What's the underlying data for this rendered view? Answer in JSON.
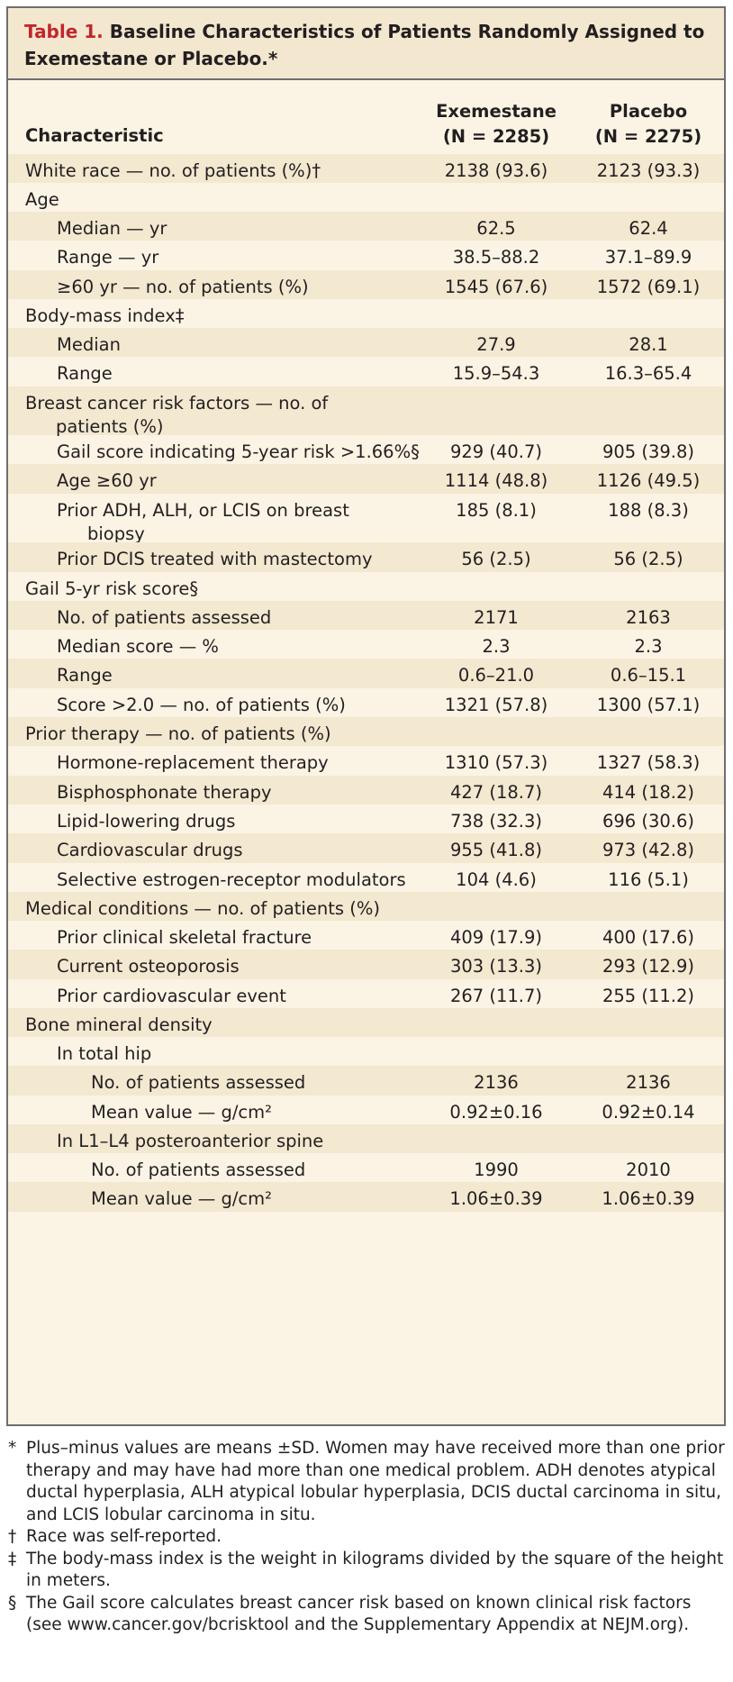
{
  "table": {
    "label": "Table 1.",
    "title": "Baseline Characteristics of Patients Randomly Assigned to Exemestane or Placebo.*",
    "columns": {
      "characteristic": "Characteristic",
      "exemestane": {
        "name": "Exemestane",
        "n": "(N = 2285)"
      },
      "placebo": {
        "name": "Placebo",
        "n": "(N = 2275)"
      }
    },
    "rows": [
      {
        "label": "White race — no. of patients (%)†",
        "exemestane": "2138 (93.6)",
        "placebo": "2123 (93.3)"
      },
      {
        "label": "Age",
        "exemestane": "",
        "placebo": ""
      },
      {
        "label": "Median — yr",
        "exemestane": "62.5",
        "placebo": "62.4"
      },
      {
        "label": "Range — yr",
        "exemestane": "38.5–88.2",
        "placebo": "37.1–89.9"
      },
      {
        "label": "≥60 yr — no. of patients (%)",
        "exemestane": "1545 (67.6)",
        "placebo": "1572 (69.1)"
      },
      {
        "label": "Body-mass index‡",
        "exemestane": "",
        "placebo": ""
      },
      {
        "label": "Median",
        "exemestane": "27.9",
        "placebo": "28.1"
      },
      {
        "label": "Range",
        "exemestane": "15.9–54.3",
        "placebo": "16.3–65.4"
      },
      {
        "label": "Breast cancer risk factors — no. of",
        "label2": "patients (%)",
        "exemestane": "",
        "placebo": ""
      },
      {
        "label": "Gail score indicating 5-year risk >1.66%§",
        "exemestane": "929 (40.7)",
        "placebo": "905 (39.8)"
      },
      {
        "label": "Age ≥60 yr",
        "exemestane": "1114 (48.8)",
        "placebo": "1126 (49.5)"
      },
      {
        "label": "Prior ADH, ALH, or LCIS on breast",
        "label2": "biopsy",
        "exemestane": "185 (8.1)",
        "placebo": "188 (8.3)"
      },
      {
        "label": "Prior DCIS treated with mastectomy",
        "exemestane": "56 (2.5)",
        "placebo": "56 (2.5)"
      },
      {
        "label": "Gail 5-yr risk score§",
        "exemestane": "",
        "placebo": ""
      },
      {
        "label": "No. of patients assessed",
        "exemestane": "2171",
        "placebo": "2163"
      },
      {
        "label": "Median score — %",
        "exemestane": "2.3",
        "placebo": "2.3"
      },
      {
        "label": "Range",
        "exemestane": "0.6–21.0",
        "placebo": "0.6–15.1"
      },
      {
        "label": "Score >2.0 — no. of patients (%)",
        "exemestane": "1321 (57.8)",
        "placebo": "1300 (57.1)"
      },
      {
        "label": "Prior therapy — no. of patients (%)",
        "exemestane": "",
        "placebo": ""
      },
      {
        "label": "Hormone-replacement therapy",
        "exemestane": "1310 (57.3)",
        "placebo": "1327 (58.3)"
      },
      {
        "label": "Bisphosphonate therapy",
        "exemestane": "427 (18.7)",
        "placebo": "414 (18.2)"
      },
      {
        "label": "Lipid-lowering drugs",
        "exemestane": "738 (32.3)",
        "placebo": "696 (30.6)"
      },
      {
        "label": "Cardiovascular drugs",
        "exemestane": "955 (41.8)",
        "placebo": "973 (42.8)"
      },
      {
        "label": "Selective estrogen-receptor modulators",
        "exemestane": "104 (4.6)",
        "placebo": "116 (5.1)"
      },
      {
        "label": "Medical conditions — no. of patients (%)",
        "exemestane": "",
        "placebo": ""
      },
      {
        "label": "Prior clinical skeletal fracture",
        "exemestane": "409 (17.9)",
        "placebo": "400 (17.6)"
      },
      {
        "label": "Current osteoporosis",
        "exemestane": "303 (13.3)",
        "placebo": "293 (12.9)"
      },
      {
        "label": "Prior cardiovascular event",
        "exemestane": "267 (11.7)",
        "placebo": "255 (11.2)"
      },
      {
        "label": "Bone mineral density",
        "exemestane": "",
        "placebo": ""
      },
      {
        "label": "In total hip",
        "exemestane": "",
        "placebo": ""
      },
      {
        "label": "No. of patients assessed",
        "exemestane": "2136",
        "placebo": "2136"
      },
      {
        "label": "Mean value — g/cm²",
        "exemestane": "0.92±0.16",
        "placebo": "0.92±0.14"
      },
      {
        "label": "In L1–L4 posteroanterior spine",
        "exemestane": "",
        "placebo": ""
      },
      {
        "label": "No. of patients assessed",
        "exemestane": "1990",
        "placebo": "2010"
      },
      {
        "label": "Mean value — g/cm²",
        "exemestane": "1.06±0.39",
        "placebo": "1.06±0.39"
      }
    ]
  },
  "footnotes": [
    {
      "mark": "*",
      "text": "Plus–minus values are means ±SD. Women may have received more than one prior therapy and may have had more than one medical problem. ADH denotes atypical ductal hyperplasia, ALH atypical lobular hyperplasia, DCIS ductal carcinoma in situ, and LCIS lobular carcinoma in situ."
    },
    {
      "mark": "†",
      "text": "Race was self-reported."
    },
    {
      "mark": "‡",
      "text": "The body-mass index is the weight in kilograms divided by the square of the height in meters."
    },
    {
      "mark": "§",
      "text": "The Gail score calculates breast cancer risk based on known clinical risk factors (see www.cancer.gov/bcrisktool and the Supplementary Appendix at NEJM.org)."
    }
  ],
  "colors": {
    "title_label": "#c0272d",
    "title_bg": "#f3e7cf",
    "table_bg": "#fbf4e4",
    "row_shade": "#f3e8d0",
    "border": "#6d6e71"
  }
}
